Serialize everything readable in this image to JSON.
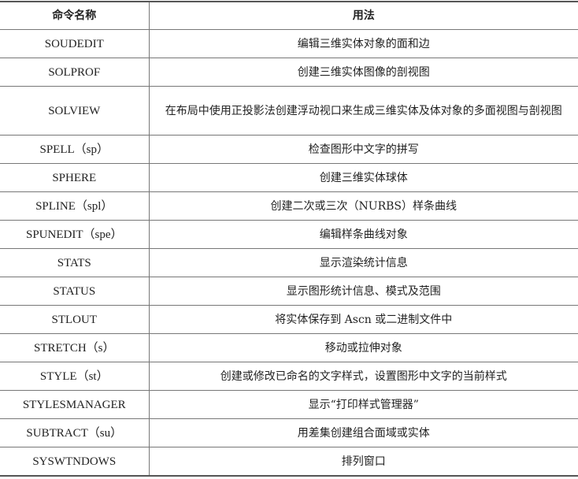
{
  "table": {
    "headers": [
      "命令名称",
      "用法"
    ],
    "rows": [
      [
        "SOUDEDIT",
        "编辑三维实体对象的面和边"
      ],
      [
        "SOLPROF",
        "创建三维实体图像的剖视图"
      ],
      [
        "SOLVIEW",
        "在布局中使用正投影法创建浮动视口来生成三维实体及体对象的多面视图与剖视图"
      ],
      [
        "SPELL（sp）",
        "检查图形中文字的拼写"
      ],
      [
        "SPHERE",
        "创建三维实体球体"
      ],
      [
        "SPLINE（spl）",
        "创建二次或三次（NURBS）样条曲线"
      ],
      [
        "SPUNEDIT（spe）",
        "编辑样条曲线对象"
      ],
      [
        "STATS",
        "显示渲染统计信息"
      ],
      [
        "STATUS",
        "显示图形统计信息、模式及范围"
      ],
      [
        "STLOUT",
        "将实体保存到 Ascn 或二进制文件中"
      ],
      [
        "STRETCH（s）",
        "移动或拉伸对象"
      ],
      [
        "STYLE（st）",
        "创建或修改已命名的文字样式，设置图形中文字的当前样式"
      ],
      [
        "STYLESMANAGER",
        "显示“打印样式管理器”"
      ],
      [
        "SUBTRACT（su）",
        "用差集创建组合面域或实体"
      ],
      [
        "SYSWTNDOWS",
        "排列窗口"
      ]
    ]
  }
}
